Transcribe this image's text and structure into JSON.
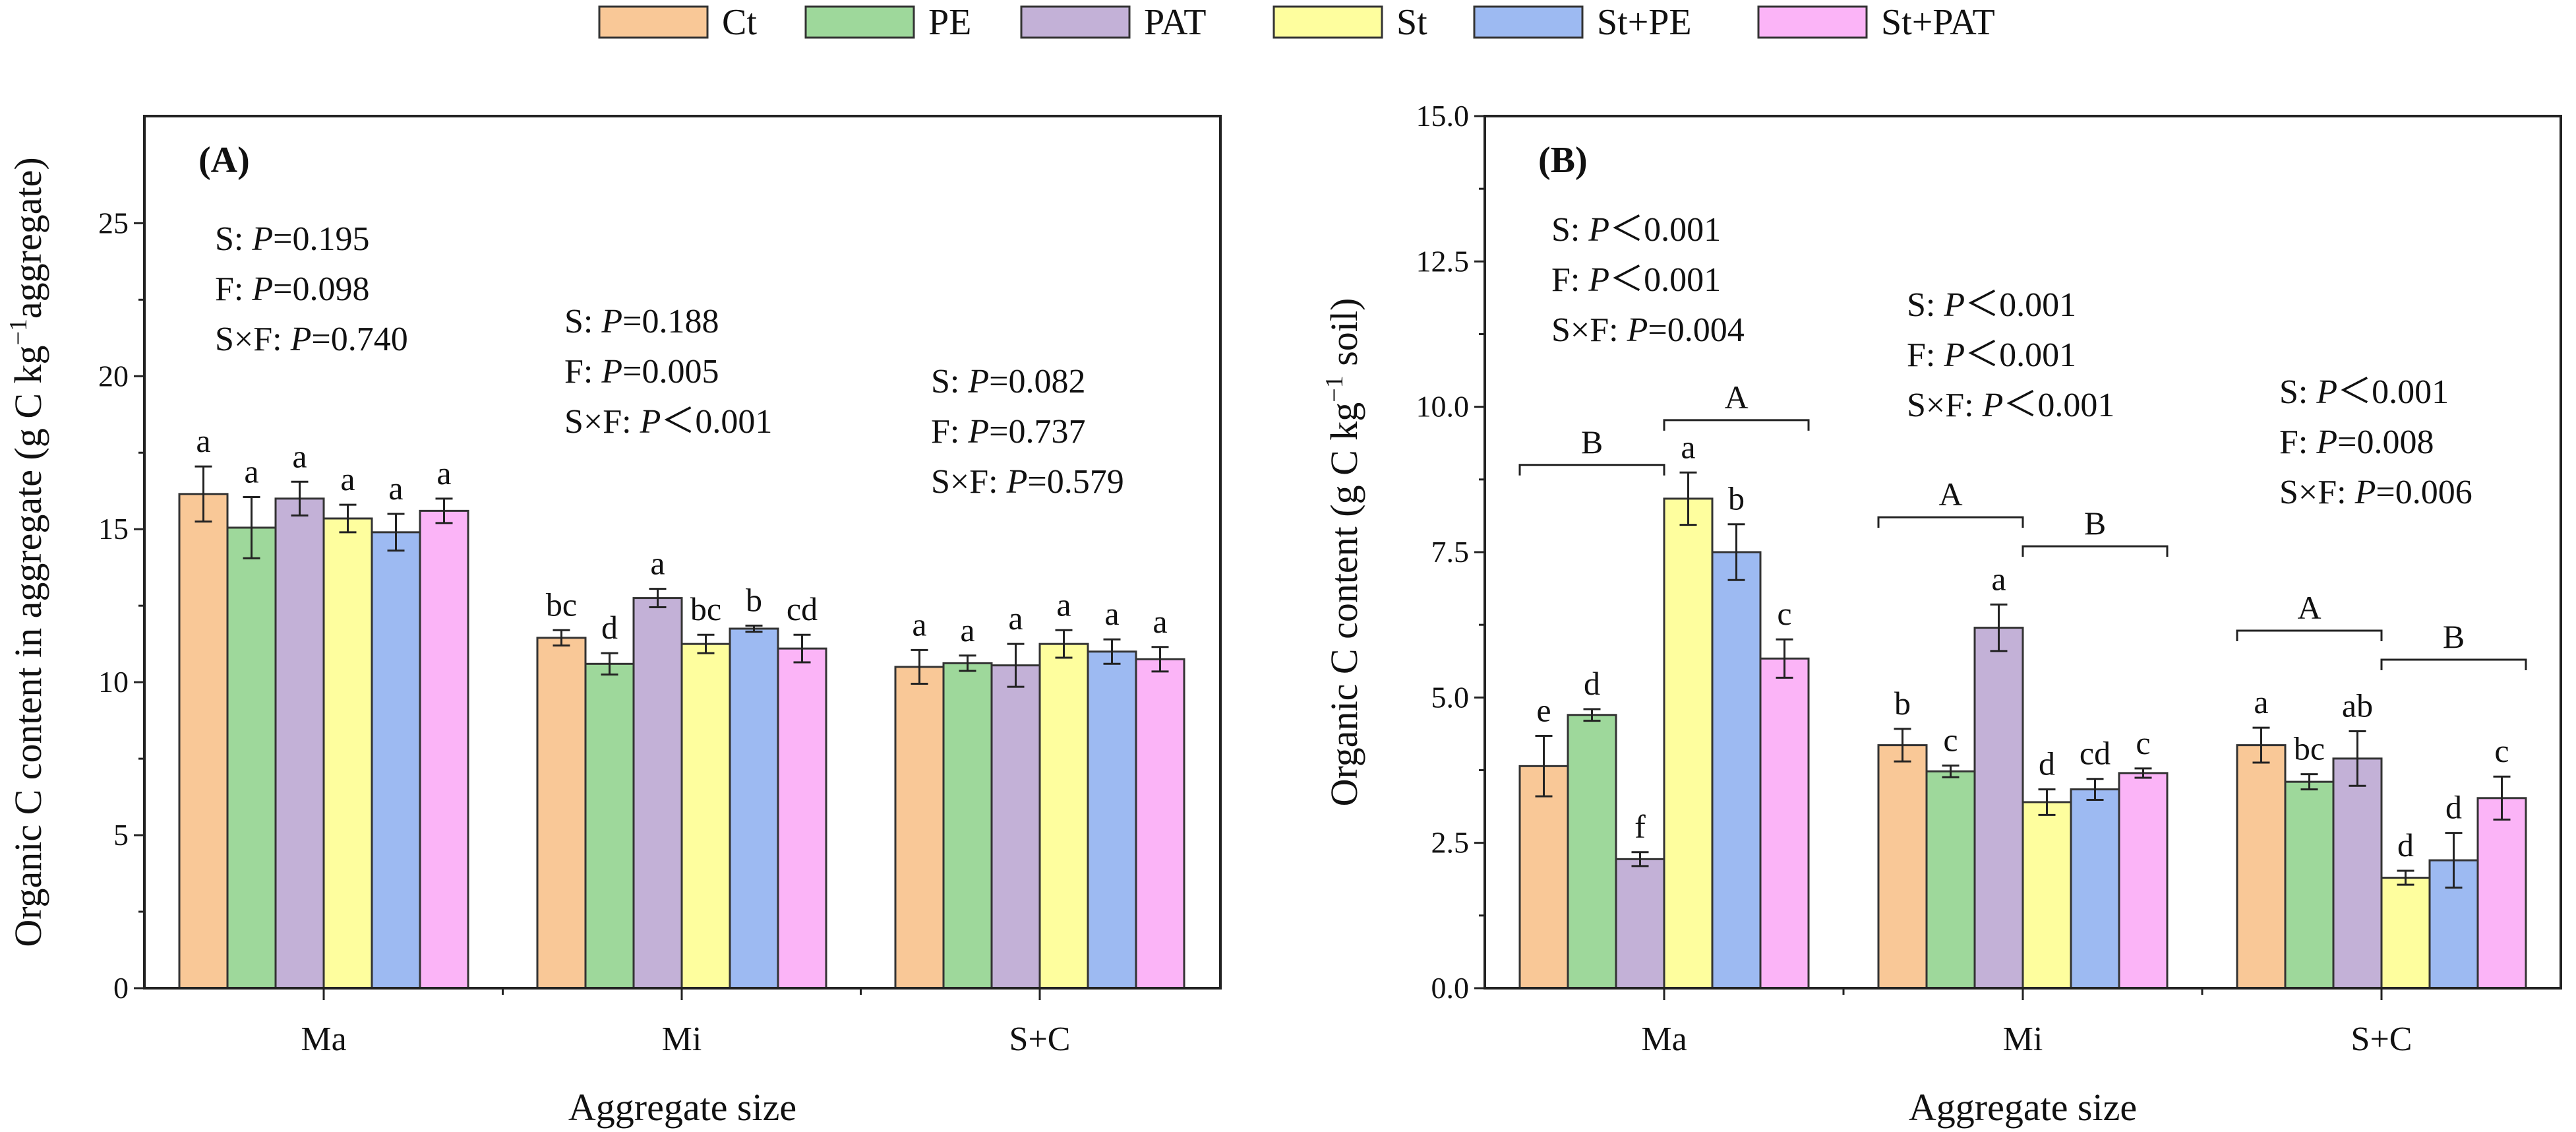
{
  "legend": [
    {
      "label": "Ct",
      "color": "#F9C897"
    },
    {
      "label": "PE",
      "color": "#9ED89B"
    },
    {
      "label": "PAT",
      "color": "#C3B1D7"
    },
    {
      "label": "St",
      "color": "#FEFE9E"
    },
    {
      "label": "St+PE",
      "color": "#9DBAF2"
    },
    {
      "label": "St+PAT",
      "color": "#FBB4F7"
    }
  ],
  "chart_data": [
    {
      "type": "bar",
      "panel_label": "(A)",
      "categories": [
        "Ma",
        "Mi",
        "S+C"
      ],
      "xlabel": "Aggregate size",
      "ylabel": {
        "prefix": "Organic C content in aggregate (g C kg",
        "sup": "−1",
        "suffix": "aggregate)"
      },
      "ylim": [
        0,
        28.5
      ],
      "yticks": [
        0,
        5,
        10,
        15,
        20,
        25
      ],
      "ytick_labels": [
        "0",
        "5",
        "10",
        "15",
        "20",
        "25"
      ],
      "series": [
        {
          "name": "Ct",
          "values": [
            16.15,
            11.45,
            10.5
          ],
          "errors": [
            0.9,
            0.25,
            0.55
          ],
          "letters": [
            "a",
            "bc",
            "a"
          ]
        },
        {
          "name": "PE",
          "values": [
            15.05,
            10.6,
            10.62
          ],
          "errors": [
            1.0,
            0.35,
            0.25
          ],
          "letters": [
            "a",
            "d",
            "a"
          ]
        },
        {
          "name": "PAT",
          "values": [
            16.0,
            12.75,
            10.55
          ],
          "errors": [
            0.55,
            0.3,
            0.7
          ],
          "letters": [
            "a",
            "a",
            "a"
          ]
        },
        {
          "name": "St",
          "values": [
            15.35,
            11.25,
            11.25
          ],
          "errors": [
            0.45,
            0.3,
            0.45
          ],
          "letters": [
            "a",
            "bc",
            "a"
          ]
        },
        {
          "name": "St+PE",
          "values": [
            14.9,
            11.75,
            11.0
          ],
          "errors": [
            0.6,
            0.1,
            0.4
          ],
          "letters": [
            "a",
            "b",
            "a"
          ]
        },
        {
          "name": "St+PAT",
          "values": [
            15.6,
            11.1,
            10.75
          ],
          "errors": [
            0.4,
            0.45,
            0.4
          ],
          "letters": [
            "a",
            "cd",
            "a"
          ]
        }
      ],
      "stats": [
        [
          {
            "label": "S: ",
            "p": "P",
            "rel": "=0.195"
          },
          {
            "label": "F: ",
            "p": "P",
            "rel": "=0.098"
          },
          {
            "label": "S×F: ",
            "p": "P",
            "rel": "=0.740"
          }
        ],
        [
          {
            "label": "S: ",
            "p": "P",
            "rel": "=0.188"
          },
          {
            "label": "F: ",
            "p": "P",
            "rel": "=0.005"
          },
          {
            "label": "S×F: ",
            "p": "P",
            "rel": "＜0.001"
          }
        ],
        [
          {
            "label": "S: ",
            "p": "P",
            "rel": "=0.082"
          },
          {
            "label": "F: ",
            "p": "P",
            "rel": "=0.737"
          },
          {
            "label": "S×F: ",
            "p": "P",
            "rel": "=0.579"
          }
        ]
      ],
      "brackets": []
    },
    {
      "type": "bar",
      "panel_label": "(B)",
      "categories": [
        "Ma",
        "Mi",
        "S+C"
      ],
      "xlabel": "Aggregate size",
      "ylabel": {
        "prefix": "Organic C content (g C kg",
        "sup": "−1",
        "suffix": " soil)"
      },
      "ylim": [
        0,
        15
      ],
      "yticks": [
        0,
        2.5,
        5,
        7.5,
        10,
        12.5,
        15
      ],
      "ytick_labels": [
        "0.0",
        "2.5",
        "5.0",
        "7.5",
        "10.0",
        "12.5",
        "15.0"
      ],
      "series": [
        {
          "name": "Ct",
          "values": [
            3.82,
            4.18,
            4.18
          ],
          "errors": [
            0.52,
            0.28,
            0.3
          ],
          "letters": [
            "e",
            "b",
            "a"
          ]
        },
        {
          "name": "PE",
          "values": [
            4.7,
            3.73,
            3.55
          ],
          "errors": [
            0.1,
            0.1,
            0.13
          ],
          "letters": [
            "d",
            "c",
            "bc"
          ]
        },
        {
          "name": "PAT",
          "values": [
            2.22,
            6.2,
            3.95
          ],
          "errors": [
            0.12,
            0.4,
            0.47
          ],
          "letters": [
            "f",
            "a",
            "ab"
          ]
        },
        {
          "name": "St",
          "values": [
            8.42,
            3.2,
            1.9
          ],
          "errors": [
            0.45,
            0.22,
            0.12
          ],
          "letters": [
            "a",
            "d",
            "d"
          ]
        },
        {
          "name": "St+PE",
          "values": [
            7.5,
            3.42,
            2.2
          ],
          "errors": [
            0.48,
            0.18,
            0.47
          ],
          "letters": [
            "b",
            "cd",
            "d"
          ]
        },
        {
          "name": "St+PAT",
          "values": [
            5.67,
            3.7,
            3.27
          ],
          "errors": [
            0.33,
            0.08,
            0.37
          ],
          "letters": [
            "c",
            "c",
            "c"
          ]
        }
      ],
      "stats": [
        [
          {
            "label": "S: ",
            "p": "P",
            "rel": "＜0.001"
          },
          {
            "label": "F: ",
            "p": "P",
            "rel": "＜0.001"
          },
          {
            "label": "S×F: ",
            "p": "P",
            "rel": "=0.004"
          }
        ],
        [
          {
            "label": "S: ",
            "p": "P",
            "rel": "＜0.001"
          },
          {
            "label": "F: ",
            "p": "P",
            "rel": "＜0.001"
          },
          {
            "label": "S×F: ",
            "p": "P",
            "rel": "＜0.001"
          }
        ],
        [
          {
            "label": "S: ",
            "p": "P",
            "rel": "＜0.001"
          },
          {
            "label": "F: ",
            "p": "P",
            "rel": "=0.008"
          },
          {
            "label": "S×F: ",
            "p": "P",
            "rel": "=0.006"
          }
        ]
      ],
      "brackets": [
        {
          "category": 0,
          "group": "no-straw",
          "label": "B",
          "y": 9.0
        },
        {
          "category": 0,
          "group": "straw",
          "label": "A",
          "y": 9.77
        },
        {
          "category": 1,
          "group": "no-straw",
          "label": "A",
          "y": 8.1
        },
        {
          "category": 1,
          "group": "straw",
          "label": "B",
          "y": 7.6
        },
        {
          "category": 2,
          "group": "no-straw",
          "label": "A",
          "y": 6.15
        },
        {
          "category": 2,
          "group": "straw",
          "label": "B",
          "y": 5.65
        }
      ]
    }
  ]
}
